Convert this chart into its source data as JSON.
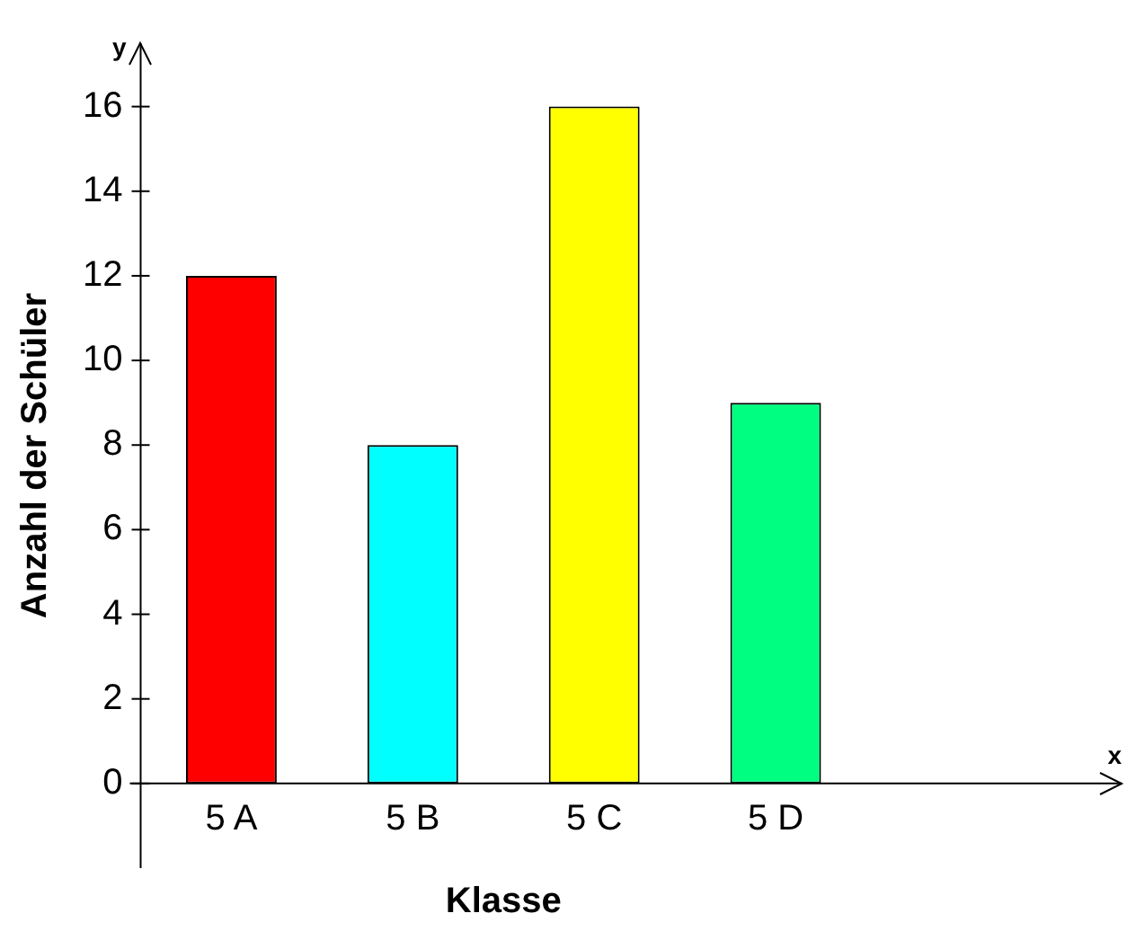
{
  "chart_data": {
    "type": "bar",
    "xlabel": "Klasse",
    "ylabel": "Anzahl der Schüler",
    "categories": [
      "5 A",
      "5 B",
      "5 C",
      "5 D"
    ],
    "values": [
      12,
      8,
      16,
      9
    ],
    "colors": [
      "#ff0000",
      "#00ffff",
      "#ffff00",
      "#00ff80"
    ],
    "ylim": [
      -2,
      17.5
    ],
    "yticks": [
      0,
      2,
      4,
      6,
      8,
      10,
      12,
      14,
      16
    ],
    "grid": false,
    "annotations": [
      "y",
      "x"
    ]
  }
}
